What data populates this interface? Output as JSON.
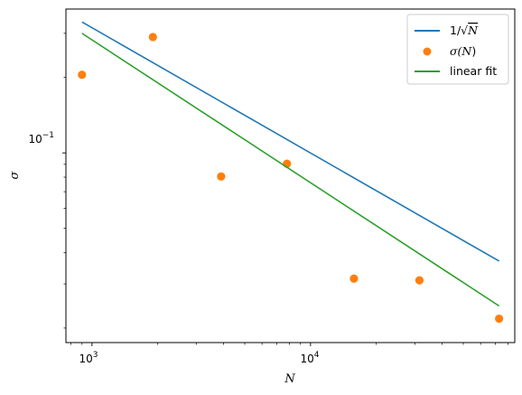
{
  "chart_data": {
    "type": "line",
    "xscale": "log",
    "yscale": "log",
    "xlabel": "N",
    "ylabel": "σ",
    "xlim": [
      760,
      86000
    ],
    "ylim": [
      0.0175,
      0.375
    ],
    "x_tick_labels": [
      "10",
      "10"
    ],
    "x_tick_exponents": [
      "3",
      "4"
    ],
    "y_tick_labels": [
      "10"
    ],
    "y_tick_exponents": [
      "−1"
    ],
    "grid": false,
    "legend_position": "upper right",
    "series": [
      {
        "name": "1/√N",
        "legend_parts": {
          "prefix": "1/√",
          "var": "N"
        },
        "kind": "line",
        "color": "#1f77b4",
        "x": [
          900,
          72900
        ],
        "y": [
          0.333,
          0.037
        ]
      },
      {
        "name": "σ(N)",
        "legend_parts": {
          "prefix": "σ(",
          "var": "N",
          "suffix": ")"
        },
        "kind": "markers",
        "color": "#ff7f0e",
        "x": [
          900,
          1900,
          3900,
          7800,
          15800,
          31500,
          72900
        ],
        "y": [
          0.205,
          0.29,
          0.0805,
          0.0905,
          0.0315,
          0.031,
          0.0218
        ]
      },
      {
        "name": "linear fit",
        "kind": "line",
        "color": "#2ca02c",
        "x": [
          900,
          72900
        ],
        "y": [
          0.3,
          0.0245
        ]
      }
    ]
  }
}
